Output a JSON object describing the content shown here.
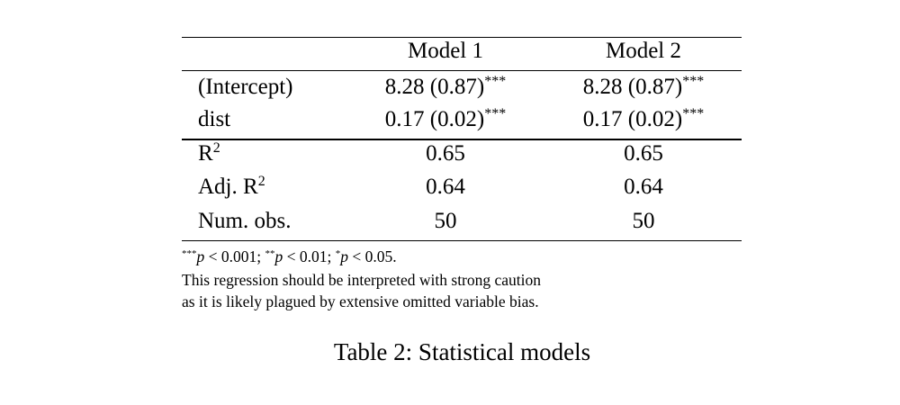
{
  "table": {
    "header": [
      "Model 1",
      "Model 2"
    ],
    "coefficients": [
      [
        {
          "text": "(Intercept)"
        },
        {
          "text": "8.28 (0.87)",
          "sup": "***"
        },
        {
          "text": "8.28 (0.87)",
          "sup": "***"
        }
      ],
      [
        {
          "text": "dist"
        },
        {
          "text": "0.17 (0.02)",
          "sup": "***"
        },
        {
          "text": "0.17 (0.02)",
          "sup": "***"
        }
      ]
    ],
    "gof": [
      [
        {
          "text": "R",
          "sup": "2"
        },
        {
          "text": "0.65"
        },
        {
          "text": "0.65"
        }
      ],
      [
        {
          "text": "Adj. R",
          "sup": "2"
        },
        {
          "text": "0.64"
        },
        {
          "text": "0.64"
        }
      ],
      [
        {
          "text": "Num. obs."
        },
        {
          "text": "50"
        },
        {
          "text": "50"
        }
      ]
    ]
  },
  "notes": {
    "significance": [
      {
        "sup": "***",
        "var": "p",
        "text": "< 0.001;"
      },
      {
        "sup": "**",
        "var": "p",
        "text": "< 0.01;"
      },
      {
        "sup": "*",
        "var": "p",
        "text": "< 0.05."
      }
    ],
    "lines": [
      "This regression should be interpreted with strong caution",
      "as it is likely plagued by extensive omitted variable bias."
    ]
  },
  "caption": "Table 2: Statistical models"
}
